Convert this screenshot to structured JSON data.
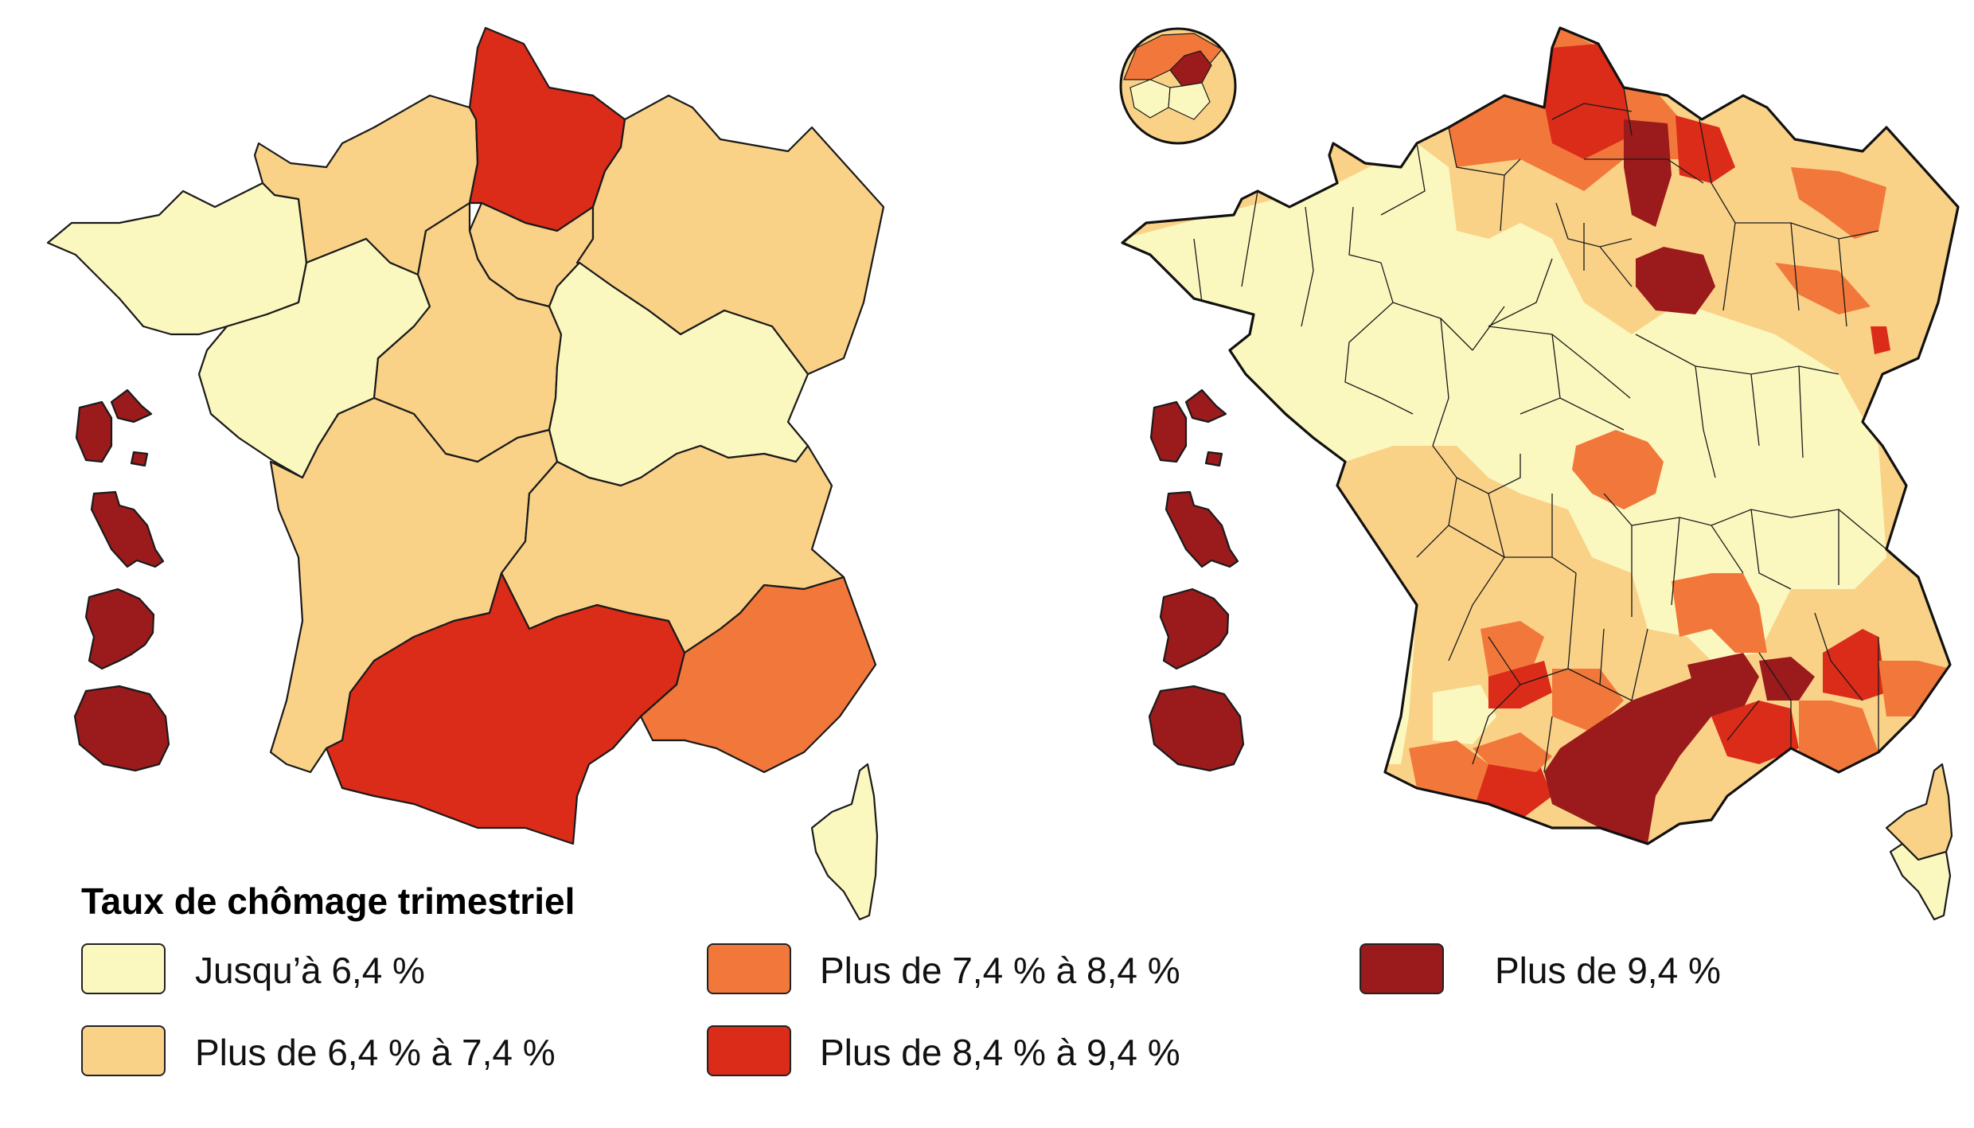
{
  "colors": {
    "c1": "#fbf8bf",
    "c2": "#f9d288",
    "c3": "#f2773a",
    "c4": "#db2b19",
    "c5": "#9b1a1c"
  },
  "legend": {
    "title": "Taux de chômage trimestriel",
    "items": [
      {
        "key": "c1",
        "label": "Jusqu’à 6,4 %"
      },
      {
        "key": "c2",
        "label": "Plus de 6,4 % à 7,4 %"
      },
      {
        "key": "c3",
        "label": "Plus de 7,4 % à 8,4 %"
      },
      {
        "key": "c4",
        "label": "Plus de 8,4 % à 9,4 %"
      },
      {
        "key": "c5",
        "label": "Plus de 9,4 %"
      }
    ]
  },
  "regions_map": {
    "regions": [
      {
        "name": "Bretagne",
        "cls": "c1"
      },
      {
        "name": "Normandie",
        "cls": "c2"
      },
      {
        "name": "Hauts-de-France",
        "cls": "c4"
      },
      {
        "name": "Île-de-France",
        "cls": "c2"
      },
      {
        "name": "Grand Est",
        "cls": "c2"
      },
      {
        "name": "Pays de la Loire",
        "cls": "c1"
      },
      {
        "name": "Centre-Val de Loire",
        "cls": "c2"
      },
      {
        "name": "Bourgogne-Franche-Comté",
        "cls": "c1"
      },
      {
        "name": "Nouvelle-Aquitaine",
        "cls": "c2"
      },
      {
        "name": "Auvergne-Rhône-Alpes",
        "cls": "c2"
      },
      {
        "name": "Occitanie",
        "cls": "c4"
      },
      {
        "name": "Provence-Alpes-Côte d'Azur",
        "cls": "c3"
      },
      {
        "name": "Corse",
        "cls": "c1"
      },
      {
        "name": "Guadeloupe",
        "cls": "c5"
      },
      {
        "name": "Martinique",
        "cls": "c5"
      },
      {
        "name": "Guyane",
        "cls": "c5"
      },
      {
        "name": "La Réunion",
        "cls": "c5"
      }
    ]
  },
  "departments_map": {
    "overseas": [
      "c5",
      "c5",
      "c5",
      "c5"
    ],
    "corse": [
      "c2",
      "c1"
    ]
  }
}
